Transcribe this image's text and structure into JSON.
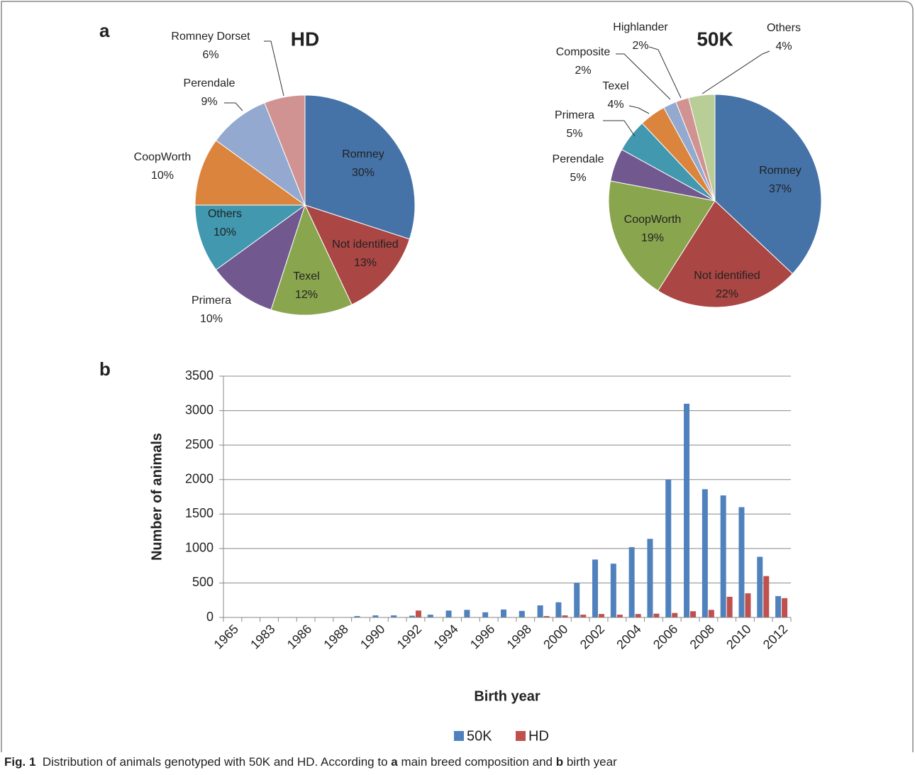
{
  "panel_labels": [
    "a",
    "b"
  ],
  "chart_data": [
    {
      "type": "pie",
      "title": "HD",
      "categories": [
        "Romney",
        "Not identified",
        "Texel",
        "Primera",
        "Others",
        "CoopWorth",
        "Perendale",
        "Romney Dorset"
      ],
      "values": [
        30,
        13,
        12,
        10,
        10,
        10,
        9,
        6
      ],
      "value_labels": [
        "30%",
        "13%",
        "12%",
        "10%",
        "10%",
        "10%",
        "9%",
        "6%"
      ],
      "colors": [
        "#4572a7",
        "#aa4643",
        "#89a54e",
        "#71588f",
        "#4198af",
        "#db843d",
        "#93a9cf",
        "#d19392"
      ]
    },
    {
      "type": "pie",
      "title": "50K",
      "categories": [
        "Romney",
        "Not identified",
        "CoopWorth",
        "Perendale",
        "Primera",
        "Texel",
        "Composite",
        "Highlander",
        "Others"
      ],
      "values": [
        37,
        22,
        19,
        5,
        5,
        4,
        2,
        2,
        4
      ],
      "value_labels": [
        "37%",
        "22%",
        "19%",
        "5%",
        "5%",
        "4%",
        "2%",
        "2%",
        "4%"
      ],
      "colors": [
        "#4572a7",
        "#aa4643",
        "#89a54e",
        "#71588f",
        "#4198af",
        "#db843d",
        "#93a9cf",
        "#d19392",
        "#b9cd96"
      ]
    },
    {
      "type": "bar",
      "categories": [
        "1965",
        null,
        "1983",
        null,
        "1986",
        null,
        "1988",
        null,
        "1990",
        null,
        "1992",
        null,
        "1994",
        null,
        "1996",
        null,
        "1998",
        null,
        "2000",
        null,
        "2002",
        null,
        "2004",
        null,
        "2006",
        null,
        "2008",
        null,
        "2010",
        null,
        "2012"
      ],
      "series": [
        {
          "name": "50K",
          "color": "#4f81bd",
          "values": [
            0,
            0,
            0,
            0,
            5,
            0,
            0,
            20,
            30,
            30,
            25,
            40,
            100,
            110,
            75,
            115,
            95,
            175,
            220,
            500,
            840,
            780,
            1020,
            1140,
            2000,
            3100,
            1860,
            1770,
            1600,
            880,
            310
          ]
        },
        {
          "name": "HD",
          "color": "#c0504d",
          "values": [
            0,
            0,
            0,
            0,
            0,
            0,
            0,
            0,
            0,
            0,
            100,
            0,
            0,
            0,
            0,
            0,
            0,
            20,
            30,
            40,
            50,
            40,
            50,
            55,
            65,
            90,
            110,
            300,
            350,
            600,
            280
          ]
        }
      ],
      "ylim": [
        0,
        3500
      ],
      "yticks": [
        0,
        500,
        1000,
        1500,
        2000,
        2500,
        3000,
        3500
      ],
      "xlabel": "Birth year",
      "ylabel": "Number of animals",
      "grid": true,
      "legend": "bottom"
    }
  ],
  "caption": {
    "label": "Fig. 1",
    "parts": [
      {
        "text": "Distribution of animals genotyped with 50K and HD. According to ",
        "bold": false
      },
      {
        "text": "a",
        "bold": true
      },
      {
        "text": " main breed composition and ",
        "bold": false
      },
      {
        "text": "b",
        "bold": true
      },
      {
        "text": " birth year",
        "bold": false
      }
    ]
  }
}
